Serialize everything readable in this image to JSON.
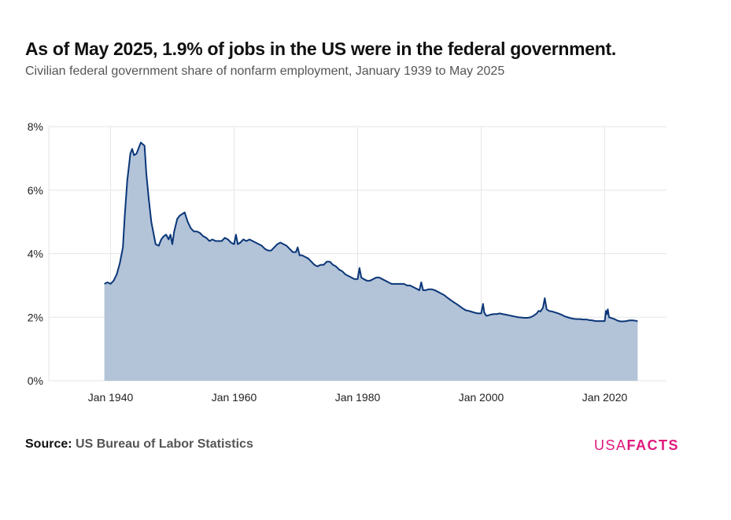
{
  "header": {
    "title": "As of May 2025, 1.9% of jobs in the US were in the federal government.",
    "subtitle": "Civilian federal government share of nonfarm employment, January 1939 to May 2025"
  },
  "footer": {
    "source_label": "Source:",
    "source_value": "US Bureau of Labor Statistics",
    "logo_usa": "USA",
    "logo_facts": "FACTS"
  },
  "colors": {
    "line": "#0a3678",
    "area": "#b3c3d8",
    "grid": "#e6e6e6",
    "brand": "#e0197d"
  },
  "chart_data": {
    "type": "area",
    "title": "As of May 2025, 1.9% of jobs in the US were in the federal government.",
    "subtitle": "Civilian federal government share of nonfarm employment, January 1939 to May 2025",
    "xlabel": "",
    "ylabel": "",
    "x_ticks": [
      "Jan 1940",
      "Jan 1960",
      "Jan 1980",
      "Jan 2000",
      "Jan 2020"
    ],
    "x_tick_values": [
      1940,
      1960,
      1980,
      2000,
      2020
    ],
    "y_ticks": [
      "0%",
      "2%",
      "4%",
      "6%",
      "8%"
    ],
    "y_tick_values": [
      0,
      2,
      4,
      6,
      8
    ],
    "xlim": [
      1930,
      2030
    ],
    "ylim": [
      0,
      8
    ],
    "grid": true,
    "series": [
      {
        "values": [
          [
            1939.0,
            3.05
          ],
          [
            1939.5,
            3.1
          ],
          [
            1940.0,
            3.05
          ],
          [
            1940.5,
            3.15
          ],
          [
            1941.0,
            3.35
          ],
          [
            1941.5,
            3.7
          ],
          [
            1942.0,
            4.2
          ],
          [
            1942.3,
            5.2
          ],
          [
            1942.7,
            6.3
          ],
          [
            1943.0,
            6.8
          ],
          [
            1943.2,
            7.15
          ],
          [
            1943.5,
            7.3
          ],
          [
            1943.8,
            7.1
          ],
          [
            1944.2,
            7.15
          ],
          [
            1944.6,
            7.35
          ],
          [
            1944.9,
            7.5
          ],
          [
            1945.2,
            7.45
          ],
          [
            1945.5,
            7.4
          ],
          [
            1945.8,
            6.5
          ],
          [
            1946.2,
            5.7
          ],
          [
            1946.6,
            5.0
          ],
          [
            1947.0,
            4.6
          ],
          [
            1947.3,
            4.3
          ],
          [
            1947.8,
            4.25
          ],
          [
            1948.2,
            4.45
          ],
          [
            1948.6,
            4.55
          ],
          [
            1949.0,
            4.6
          ],
          [
            1949.4,
            4.45
          ],
          [
            1949.7,
            4.6
          ],
          [
            1950.0,
            4.3
          ],
          [
            1950.3,
            4.7
          ],
          [
            1950.8,
            5.1
          ],
          [
            1951.2,
            5.2
          ],
          [
            1951.6,
            5.25
          ],
          [
            1952.0,
            5.3
          ],
          [
            1952.5,
            5.0
          ],
          [
            1953.0,
            4.8
          ],
          [
            1953.5,
            4.7
          ],
          [
            1954.0,
            4.7
          ],
          [
            1954.5,
            4.65
          ],
          [
            1955.0,
            4.55
          ],
          [
            1955.5,
            4.5
          ],
          [
            1956.0,
            4.4
          ],
          [
            1956.5,
            4.45
          ],
          [
            1957.0,
            4.4
          ],
          [
            1957.5,
            4.4
          ],
          [
            1958.0,
            4.4
          ],
          [
            1958.5,
            4.5
          ],
          [
            1959.0,
            4.45
          ],
          [
            1959.5,
            4.35
          ],
          [
            1960.0,
            4.3
          ],
          [
            1960.3,
            4.6
          ],
          [
            1960.6,
            4.3
          ],
          [
            1961.0,
            4.35
          ],
          [
            1961.5,
            4.45
          ],
          [
            1962.0,
            4.4
          ],
          [
            1962.5,
            4.45
          ],
          [
            1963.0,
            4.4
          ],
          [
            1963.5,
            4.35
          ],
          [
            1964.0,
            4.3
          ],
          [
            1964.5,
            4.25
          ],
          [
            1965.0,
            4.15
          ],
          [
            1965.5,
            4.1
          ],
          [
            1966.0,
            4.1
          ],
          [
            1966.5,
            4.2
          ],
          [
            1967.0,
            4.3
          ],
          [
            1967.5,
            4.35
          ],
          [
            1968.0,
            4.3
          ],
          [
            1968.5,
            4.25
          ],
          [
            1969.0,
            4.15
          ],
          [
            1969.5,
            4.05
          ],
          [
            1970.0,
            4.05
          ],
          [
            1970.3,
            4.2
          ],
          [
            1970.6,
            3.95
          ],
          [
            1971.0,
            3.95
          ],
          [
            1971.5,
            3.9
          ],
          [
            1972.0,
            3.85
          ],
          [
            1972.5,
            3.75
          ],
          [
            1973.0,
            3.65
          ],
          [
            1973.5,
            3.6
          ],
          [
            1974.0,
            3.65
          ],
          [
            1974.5,
            3.65
          ],
          [
            1975.0,
            3.75
          ],
          [
            1975.5,
            3.75
          ],
          [
            1976.0,
            3.65
          ],
          [
            1976.5,
            3.6
          ],
          [
            1977.0,
            3.5
          ],
          [
            1977.5,
            3.45
          ],
          [
            1978.0,
            3.35
          ],
          [
            1978.5,
            3.3
          ],
          [
            1979.0,
            3.25
          ],
          [
            1979.5,
            3.2
          ],
          [
            1980.0,
            3.2
          ],
          [
            1980.3,
            3.55
          ],
          [
            1980.6,
            3.25
          ],
          [
            1981.0,
            3.2
          ],
          [
            1981.5,
            3.15
          ],
          [
            1982.0,
            3.15
          ],
          [
            1982.5,
            3.2
          ],
          [
            1983.0,
            3.25
          ],
          [
            1983.5,
            3.25
          ],
          [
            1984.0,
            3.2
          ],
          [
            1984.5,
            3.15
          ],
          [
            1985.0,
            3.1
          ],
          [
            1985.5,
            3.05
          ],
          [
            1986.0,
            3.05
          ],
          [
            1986.5,
            3.05
          ],
          [
            1987.0,
            3.05
          ],
          [
            1987.5,
            3.05
          ],
          [
            1988.0,
            3.0
          ],
          [
            1988.5,
            3.0
          ],
          [
            1989.0,
            2.95
          ],
          [
            1989.5,
            2.9
          ],
          [
            1990.0,
            2.85
          ],
          [
            1990.3,
            3.1
          ],
          [
            1990.6,
            2.85
          ],
          [
            1991.0,
            2.85
          ],
          [
            1991.5,
            2.88
          ],
          [
            1992.0,
            2.88
          ],
          [
            1992.5,
            2.85
          ],
          [
            1993.0,
            2.8
          ],
          [
            1993.5,
            2.75
          ],
          [
            1994.0,
            2.7
          ],
          [
            1994.5,
            2.62
          ],
          [
            1995.0,
            2.55
          ],
          [
            1995.5,
            2.48
          ],
          [
            1996.0,
            2.42
          ],
          [
            1996.5,
            2.35
          ],
          [
            1997.0,
            2.28
          ],
          [
            1997.5,
            2.22
          ],
          [
            1998.0,
            2.2
          ],
          [
            1998.5,
            2.17
          ],
          [
            1999.0,
            2.14
          ],
          [
            1999.5,
            2.12
          ],
          [
            2000.0,
            2.12
          ],
          [
            2000.3,
            2.42
          ],
          [
            2000.5,
            2.15
          ],
          [
            2000.8,
            2.05
          ],
          [
            2001.0,
            2.05
          ],
          [
            2001.5,
            2.08
          ],
          [
            2002.0,
            2.1
          ],
          [
            2002.5,
            2.1
          ],
          [
            2003.0,
            2.12
          ],
          [
            2003.5,
            2.1
          ],
          [
            2004.0,
            2.08
          ],
          [
            2004.5,
            2.06
          ],
          [
            2005.0,
            2.04
          ],
          [
            2005.5,
            2.02
          ],
          [
            2006.0,
            2.0
          ],
          [
            2006.5,
            1.99
          ],
          [
            2007.0,
            1.98
          ],
          [
            2007.5,
            1.98
          ],
          [
            2008.0,
            2.0
          ],
          [
            2008.5,
            2.05
          ],
          [
            2009.0,
            2.12
          ],
          [
            2009.3,
            2.2
          ],
          [
            2009.6,
            2.18
          ],
          [
            2010.0,
            2.3
          ],
          [
            2010.3,
            2.6
          ],
          [
            2010.6,
            2.25
          ],
          [
            2011.0,
            2.2
          ],
          [
            2011.5,
            2.18
          ],
          [
            2012.0,
            2.15
          ],
          [
            2012.5,
            2.12
          ],
          [
            2013.0,
            2.08
          ],
          [
            2013.5,
            2.03
          ],
          [
            2014.0,
            2.0
          ],
          [
            2014.5,
            1.97
          ],
          [
            2015.0,
            1.95
          ],
          [
            2015.5,
            1.94
          ],
          [
            2016.0,
            1.94
          ],
          [
            2016.5,
            1.93
          ],
          [
            2017.0,
            1.93
          ],
          [
            2017.5,
            1.91
          ],
          [
            2018.0,
            1.9
          ],
          [
            2018.5,
            1.88
          ],
          [
            2019.0,
            1.88
          ],
          [
            2019.5,
            1.88
          ],
          [
            2020.0,
            1.88
          ],
          [
            2020.2,
            2.2
          ],
          [
            2020.35,
            2.1
          ],
          [
            2020.5,
            2.25
          ],
          [
            2020.7,
            2.0
          ],
          [
            2021.0,
            1.98
          ],
          [
            2021.5,
            1.95
          ],
          [
            2022.0,
            1.9
          ],
          [
            2022.5,
            1.87
          ],
          [
            2023.0,
            1.87
          ],
          [
            2023.5,
            1.88
          ],
          [
            2024.0,
            1.9
          ],
          [
            2024.5,
            1.9
          ],
          [
            2025.0,
            1.89
          ],
          [
            2025.33,
            1.87
          ]
        ]
      }
    ]
  }
}
